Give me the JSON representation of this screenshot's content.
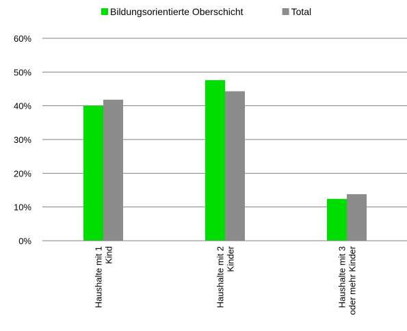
{
  "chart_data": {
    "type": "bar",
    "categories": [
      [
        "Haushalte mit 1",
        "Kind"
      ],
      [
        "Haushalte mit 2",
        "Kinder"
      ],
      [
        "Haushalte mit 3",
        "oder mehr Kinder"
      ]
    ],
    "series": [
      {
        "name": "Bildungsorientierte Oberschicht",
        "color": "#00dd00",
        "values": [
          40.0,
          47.6,
          12.4
        ]
      },
      {
        "name": "Total",
        "color": "#8c8c8c",
        "values": [
          41.8,
          44.3,
          13.8
        ]
      }
    ],
    "yticks": [
      "0%",
      "10%",
      "20%",
      "30%",
      "40%",
      "50%",
      "60%"
    ],
    "ylim": [
      0,
      60
    ],
    "grid": true,
    "gridline_color": "#808080",
    "legend_position": "top-center",
    "xlabel": "",
    "ylabel": ""
  }
}
